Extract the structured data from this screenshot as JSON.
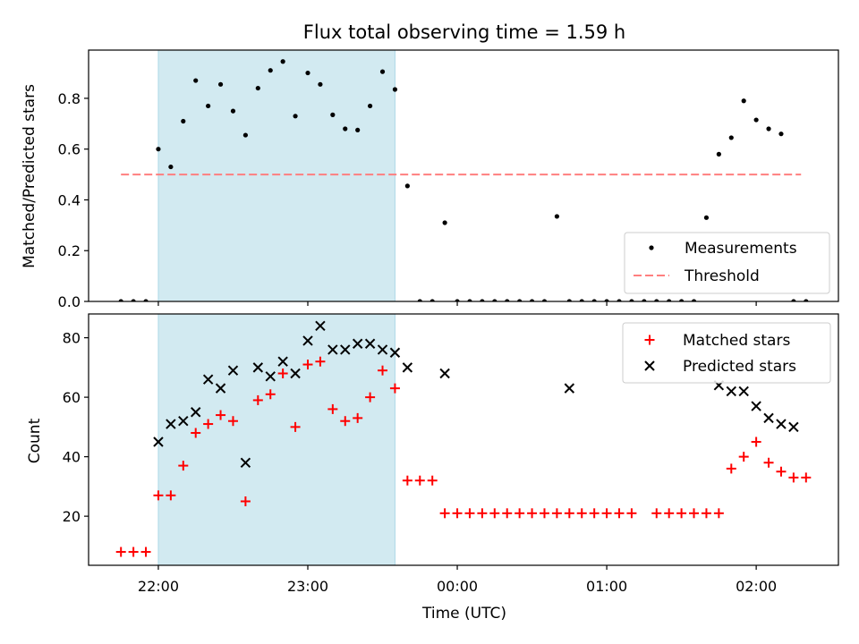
{
  "chart_data": [
    {
      "type": "scatter",
      "title": "Flux total observing time = 1.59 h",
      "xlabel": "",
      "ylabel": "Matched/Predicted stars",
      "xlim": [
        "21:32",
        "02:33"
      ],
      "ylim": [
        0,
        0.99
      ],
      "yticks": [
        "0.0",
        "0.2",
        "0.4",
        "0.6",
        "0.8"
      ],
      "ytick_values": [
        0,
        0.2,
        0.4,
        0.6,
        0.8
      ],
      "xticks": [
        "22:00",
        "23:00",
        "00:00",
        "01:00",
        "02:00"
      ],
      "grid": false,
      "legend_placement": "lower-right",
      "shaded_span": {
        "from": "22:00",
        "to": "23:35",
        "color": "#add8e6"
      },
      "threshold": {
        "name": "Threshold",
        "value": 0.5,
        "from": "21:45",
        "to": "02:18",
        "color": "#ff7f7f"
      },
      "series": [
        {
          "name": "Measurements",
          "color": "#000000",
          "x": [
            "21:45",
            "21:50",
            "21:55",
            "22:00",
            "22:05",
            "22:10",
            "22:15",
            "22:20",
            "22:25",
            "22:30",
            "22:35",
            "22:40",
            "22:45",
            "22:50",
            "22:55",
            "23:00",
            "23:05",
            "23:10",
            "23:15",
            "23:20",
            "23:25",
            "23:30",
            "23:35",
            "23:40",
            "23:45",
            "23:50",
            "23:55",
            "00:00",
            "00:05",
            "00:10",
            "00:15",
            "00:20",
            "00:25",
            "00:30",
            "00:35",
            "00:40",
            "00:45",
            "00:50",
            "00:55",
            "01:00",
            "01:05",
            "01:10",
            "01:15",
            "01:20",
            "01:25",
            "01:30",
            "01:35",
            "01:40",
            "01:45",
            "01:50",
            "01:55",
            "02:00",
            "02:05",
            "02:10",
            "02:15",
            "02:20"
          ],
          "y": [
            0,
            0,
            0,
            0.6,
            0.53,
            0.71,
            0.87,
            0.77,
            0.855,
            0.75,
            0.655,
            0.84,
            0.91,
            0.945,
            0.73,
            0.9,
            0.855,
            0.735,
            0.68,
            0.675,
            0.77,
            0.905,
            0.835,
            0.455,
            0,
            0,
            0.31,
            0,
            0,
            0,
            0,
            0,
            0,
            0,
            0,
            0.335,
            0,
            0,
            0,
            0,
            0,
            0,
            0,
            0,
            0,
            0,
            0,
            0.33,
            0.58,
            0.645,
            0.79,
            0.715,
            0.68,
            0.66,
            0,
            0
          ]
        }
      ]
    },
    {
      "type": "scatter",
      "title": "",
      "xlabel": "Time (UTC)",
      "ylabel": "Count",
      "xlim": [
        "21:32",
        "02:33"
      ],
      "ylim": [
        3.5,
        88
      ],
      "yticks": [
        "20",
        "40",
        "60",
        "80"
      ],
      "ytick_values": [
        20,
        40,
        60,
        80
      ],
      "xticks": [
        "22:00",
        "23:00",
        "00:00",
        "01:00",
        "02:00"
      ],
      "grid": false,
      "legend_placement": "upper-right",
      "shaded_span": {
        "from": "22:00",
        "to": "23:35",
        "color": "#add8e6"
      },
      "series": [
        {
          "name": "Matched stars",
          "color": "#ff0000",
          "marker": "plus",
          "x": [
            "21:45",
            "21:50",
            "21:55",
            "22:00",
            "22:05",
            "22:10",
            "22:15",
            "22:20",
            "22:25",
            "22:30",
            "22:35",
            "22:40",
            "22:45",
            "22:50",
            "22:55",
            "23:00",
            "23:05",
            "23:10",
            "23:15",
            "23:20",
            "23:25",
            "23:30",
            "23:35",
            "23:40",
            "23:45",
            "23:50",
            "23:55",
            "00:00",
            "00:05",
            "00:10",
            "00:15",
            "00:20",
            "00:25",
            "00:30",
            "00:35",
            "00:40",
            "00:45",
            "00:50",
            "00:55",
            "01:00",
            "01:05",
            "01:10",
            "01:20",
            "01:25",
            "01:30",
            "01:35",
            "01:40",
            "01:45",
            "01:50",
            "01:55",
            "02:00",
            "02:05",
            "02:10",
            "02:15",
            "02:20"
          ],
          "y": [
            8,
            8,
            8,
            27,
            27,
            37,
            48,
            51,
            54,
            52,
            25,
            59,
            61,
            68,
            50,
            71,
            72,
            56,
            52,
            53,
            60,
            69,
            63,
            32,
            32,
            32,
            21,
            21,
            21,
            21,
            21,
            21,
            21,
            21,
            21,
            21,
            21,
            21,
            21,
            21,
            21,
            21,
            21,
            21,
            21,
            21,
            21,
            21,
            36,
            40,
            45,
            38,
            35,
            33,
            33
          ]
        },
        {
          "name": "Predicted stars",
          "color": "#000000",
          "marker": "x",
          "x": [
            "22:00",
            "22:05",
            "22:10",
            "22:15",
            "22:20",
            "22:25",
            "22:30",
            "22:35",
            "22:40",
            "22:45",
            "22:50",
            "22:55",
            "23:00",
            "23:05",
            "23:10",
            "23:15",
            "23:20",
            "23:25",
            "23:30",
            "23:35",
            "23:40",
            "23:55",
            "00:45",
            "01:45",
            "01:50",
            "01:55",
            "02:00",
            "02:05",
            "02:10",
            "02:15"
          ],
          "y": [
            45,
            51,
            52,
            55,
            66,
            63,
            69,
            38,
            70,
            67,
            72,
            68,
            79,
            84,
            76,
            76,
            78,
            78,
            76,
            75,
            70,
            68,
            63,
            64,
            62,
            62,
            57,
            53,
            51,
            50
          ]
        }
      ]
    }
  ]
}
